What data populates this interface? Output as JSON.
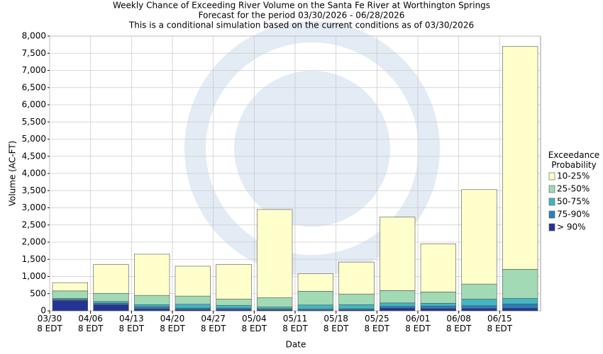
{
  "chart_data": {
    "type": "stacked_bar",
    "title": "Weekly Chance of Exceeding River Volume on the Santa Fe River at Worthington Springs",
    "subtitle": "Forecast for the period 03/30/2026 - 06/28/2026",
    "note": "This is a conditional simulation based on the current conditions as of 03/30/2026",
    "x_label": "Date",
    "y_label": "Volume (AC-FT)",
    "legend_title": "Exceedance\nProbability",
    "categories": [
      "03/30\n8 EDT",
      "04/06\n8 EDT",
      "04/13\n8 EDT",
      "04/20\n8 EDT",
      "04/27\n8 EDT",
      "05/04\n8 EDT",
      "05/11\n8 EDT",
      "05/18\n8 EDT",
      "05/25\n8 EDT",
      "06/01\n8 EDT",
      "06/08\n8 EDT",
      "06/15\n8 EDT"
    ],
    "series": [
      {
        "name": "> 90%",
        "color": "#253494",
        "values": [
          300,
          180,
          60,
          40,
          40,
          30,
          20,
          30,
          80,
          70,
          70,
          80
        ]
      },
      {
        "name": "75-90%",
        "color": "#2c7fb8",
        "values": [
          30,
          40,
          60,
          40,
          40,
          30,
          30,
          30,
          50,
          70,
          80,
          120
        ]
      },
      {
        "name": "50-75%",
        "color": "#41b6c4",
        "values": [
          30,
          50,
          60,
          110,
          80,
          50,
          120,
          120,
          100,
          80,
          190,
          160
        ]
      },
      {
        "name": "25-50%",
        "color": "#a1dab4",
        "values": [
          220,
          240,
          270,
          240,
          180,
          270,
          400,
          310,
          360,
          330,
          440,
          850
        ]
      },
      {
        "name": "10-25%",
        "color": "#ffffcc",
        "values": [
          240,
          840,
          1200,
          870,
          1010,
          2570,
          510,
          930,
          2140,
          1400,
          2750,
          6490
        ]
      }
    ],
    "ylim": [
      0,
      8000
    ],
    "yticks": [
      0,
      500,
      {
        "value": 1000,
        "label": "1,000"
      },
      {
        "value": 1500,
        "label": "1,500"
      },
      {
        "value": 2000,
        "label": "2,000"
      },
      {
        "value": 2500,
        "label": "2,500"
      },
      {
        "value": 3000,
        "label": "3,000"
      },
      {
        "value": 3500,
        "label": "3,500"
      },
      {
        "value": 4000,
        "label": "4,000"
      },
      {
        "value": 4500,
        "label": "4,500"
      },
      {
        "value": 5000,
        "label": "5,000"
      },
      {
        "value": 5500,
        "label": "5,500"
      },
      {
        "value": 6000,
        "label": "6,000"
      },
      {
        "value": 6500,
        "label": "6,500"
      },
      {
        "value": 7000,
        "label": "7,000"
      },
      {
        "value": 7500,
        "label": "7,500"
      },
      {
        "value": 8000,
        "label": "8,000"
      }
    ],
    "grid": true
  }
}
